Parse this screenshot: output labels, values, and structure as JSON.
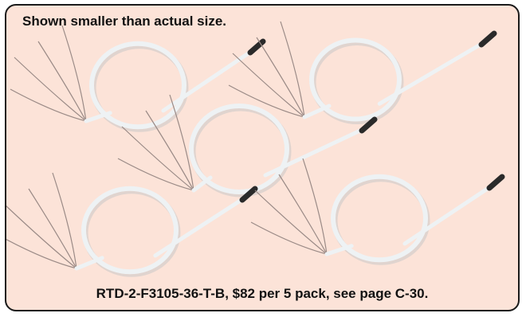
{
  "header": {
    "caption": "Shown smaller than actual size."
  },
  "footer": {
    "caption": "RTD-2-F3105-36-T-B, $82 per 5 pack, see page C-30."
  },
  "colors": {
    "panel_background": "#fce3d8",
    "panel_border": "#1a1a1a",
    "cable_sheath": "#eef2f4",
    "probe_tip": "#2a2a2a",
    "lead_wire": "#9a8a86"
  },
  "illustration": {
    "subject": "rtd-sensor-with-coiled-cable",
    "sensor_count": 5
  }
}
